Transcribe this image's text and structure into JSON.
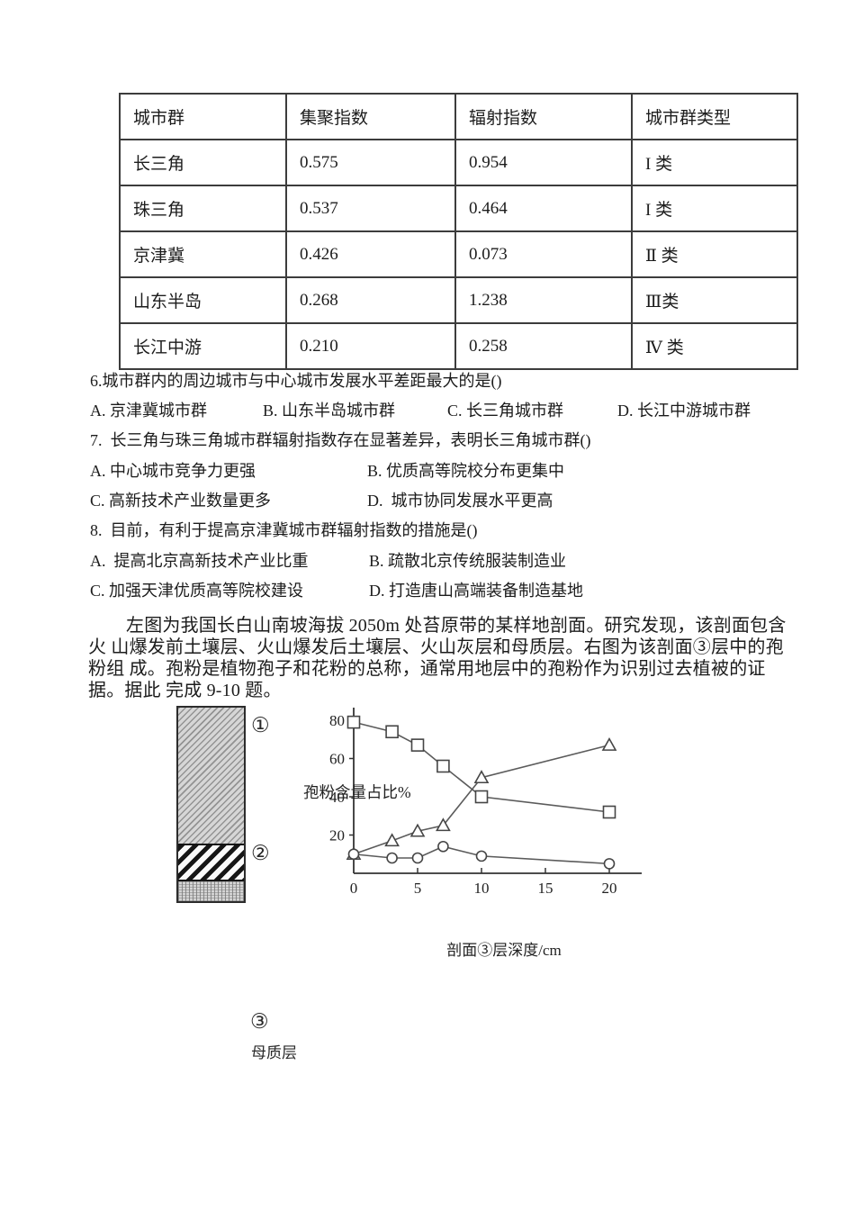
{
  "document": {
    "table": {
      "headers": [
        "城市群",
        "集聚指数",
        "辐射指数",
        "城市群类型"
      ],
      "rows": [
        [
          "长三角",
          "0.575",
          "0.954",
          "I 类"
        ],
        [
          "珠三角",
          "0.537",
          "0.464",
          "I 类"
        ],
        [
          "京津冀",
          "0.426",
          "0.073",
          "Ⅱ 类"
        ],
        [
          "山东半岛",
          "0.268",
          "1.238",
          "Ⅲ类"
        ],
        [
          "长江中游",
          "0.210",
          "0.258",
          "Ⅳ 类"
        ]
      ]
    },
    "q6": {
      "stem": "6.城市群内的周边城市与中心城市发展水平差距最大的是()",
      "options": [
        "A. 京津冀城市群",
        "B. 山东半岛城市群",
        "C. 长三角城市群",
        "D. 长江中游城市群"
      ]
    },
    "q7": {
      "stem": "7.  长三角与珠三角城市群辐射指数存在显著差异，表明长三角城市群()",
      "options": [
        "A. 中心城市竞争力更强",
        "B. 优质高等院校分布更集中",
        "C. 高新技术产业数量更多",
        "D.  城市协同发展水平更高"
      ]
    },
    "q8": {
      "stem": "8.  目前，有利于提高京津冀城市群辐射指数的措施是()",
      "options": [
        "A.  提高北京高新技术产业比重",
        "B. 疏散北京传统服装制造业",
        "C. 加强天津优质高等院校建设",
        "D. 打造唐山高端装备制造基地"
      ]
    },
    "passage": {
      "line1": "左图为我国长白山南坡海拔 2050m 处苔原带的某样地剖面。研究发现，该剖面包含",
      "line2": "火 山爆发前土壤层、火山爆发后土壤层、火山灰层和母质层。右图为该剖面③层中的孢",
      "line3": "粉组 成。孢粉是植物孢子和花粉的总称，通常用地层中的孢粉作为识别过去植被的证",
      "line4": "据。据此 完成 9-10 题。"
    },
    "figure": {
      "layer1_label": "①",
      "layer2_label": "②",
      "layer3_label": "③",
      "parent_material_label": "母质层"
    }
  },
  "chart_data": {
    "type": "line",
    "title": "",
    "xlabel": "剖面③层深度/cm",
    "ylabel": "孢粉含量占比%",
    "x_ticks": [
      0,
      5,
      10,
      15,
      20
    ],
    "y_ticks": [
      20,
      40,
      60,
      80
    ],
    "xlim": [
      0,
      22.5
    ],
    "ylim": [
      0,
      86
    ],
    "grid": false,
    "legend": "none (marker-coded series)",
    "series": [
      {
        "name": "square-marker-series",
        "marker": "square",
        "x": [
          0,
          3,
          5,
          7,
          10,
          20
        ],
        "values": [
          79,
          74,
          67,
          56,
          40,
          32
        ]
      },
      {
        "name": "triangle-marker-series",
        "marker": "triangle",
        "x": [
          0,
          3,
          5,
          7,
          10,
          20
        ],
        "values": [
          10,
          17,
          22,
          25,
          50,
          67
        ]
      },
      {
        "name": "circle-marker-series",
        "marker": "circle",
        "x": [
          0,
          3,
          5,
          7,
          10,
          20
        ],
        "values": [
          10,
          8,
          8,
          14,
          9,
          5
        ]
      }
    ],
    "line_color": "#5b5b5b",
    "marker_stroke": "#454545",
    "axis_color": "#333333"
  }
}
